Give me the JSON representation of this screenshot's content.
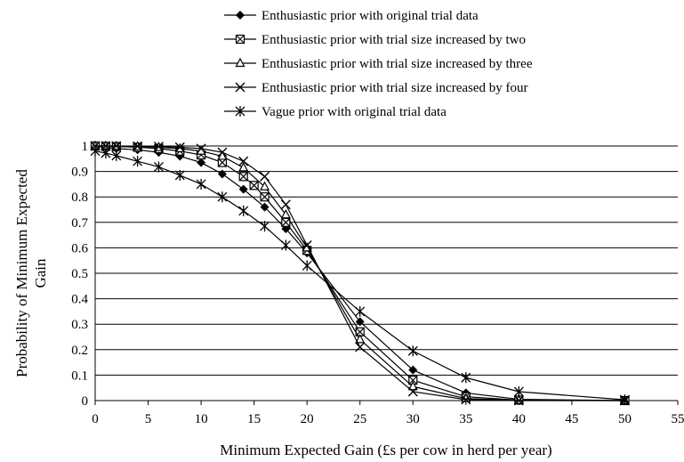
{
  "chart_data": {
    "type": "line",
    "title": "",
    "xlabel": "Minimum Expected Gain (£s per cow in herd per year)",
    "ylabel_lines": [
      "Probability of Minimum Expected",
      "Gain"
    ],
    "xlim": [
      0,
      55
    ],
    "ylim": [
      0,
      1
    ],
    "x_ticks": [
      0,
      5,
      10,
      15,
      20,
      25,
      30,
      35,
      40,
      45,
      50,
      55
    ],
    "y_ticks": [
      0,
      0.1,
      0.2,
      0.3,
      0.4,
      0.5,
      0.6,
      0.7,
      0.8,
      0.9,
      1
    ],
    "y_grid": true,
    "x_grid": false,
    "legend_position": "top",
    "line_color": "#000000",
    "series": [
      {
        "name": "Enthusiastic prior with original trial data",
        "marker": "diamond",
        "x": [
          0,
          1,
          2,
          4,
          6,
          8,
          10,
          12,
          14,
          16,
          18,
          20,
          25,
          30,
          35,
          40,
          50
        ],
        "y": [
          0.998,
          0.995,
          0.99,
          0.985,
          0.975,
          0.96,
          0.935,
          0.89,
          0.83,
          0.76,
          0.675,
          0.58,
          0.31,
          0.12,
          0.03,
          0.005,
          0.0
        ]
      },
      {
        "name": "Enthusiastic prior with trial size increased by two",
        "marker": "box-x",
        "x": [
          0,
          1,
          2,
          4,
          6,
          8,
          10,
          12,
          14,
          15,
          16,
          18,
          20,
          25,
          30,
          35,
          40,
          50
        ],
        "y": [
          1.0,
          0.999,
          0.998,
          0.995,
          0.99,
          0.98,
          0.965,
          0.935,
          0.88,
          0.845,
          0.8,
          0.7,
          0.59,
          0.27,
          0.08,
          0.015,
          0.002,
          0.0
        ]
      },
      {
        "name": "Enthusiastic prior with trial size increased by three",
        "marker": "triangle",
        "x": [
          0,
          1,
          2,
          4,
          6,
          8,
          10,
          12,
          14,
          16,
          18,
          20,
          25,
          30,
          35,
          40,
          50
        ],
        "y": [
          1.0,
          1.0,
          0.999,
          0.998,
          0.995,
          0.99,
          0.98,
          0.96,
          0.915,
          0.84,
          0.73,
          0.6,
          0.24,
          0.055,
          0.008,
          0.001,
          0.0
        ]
      },
      {
        "name": "Enthusiastic prior with trial size increased by four",
        "marker": "cross",
        "x": [
          0,
          1,
          2,
          4,
          6,
          8,
          10,
          12,
          14,
          16,
          18,
          20,
          25,
          30,
          35,
          40,
          50
        ],
        "y": [
          1.0,
          1.0,
          1.0,
          0.999,
          0.998,
          0.995,
          0.99,
          0.975,
          0.94,
          0.88,
          0.77,
          0.61,
          0.21,
          0.035,
          0.004,
          0.0,
          0.0
        ]
      },
      {
        "name": "Vague prior with original trial data",
        "marker": "star",
        "x": [
          0,
          1,
          2,
          4,
          6,
          8,
          10,
          12,
          14,
          16,
          18,
          20,
          25,
          30,
          35,
          40,
          50
        ],
        "y": [
          0.98,
          0.972,
          0.962,
          0.94,
          0.918,
          0.885,
          0.85,
          0.8,
          0.745,
          0.685,
          0.61,
          0.53,
          0.35,
          0.195,
          0.09,
          0.035,
          0.003
        ]
      }
    ]
  }
}
